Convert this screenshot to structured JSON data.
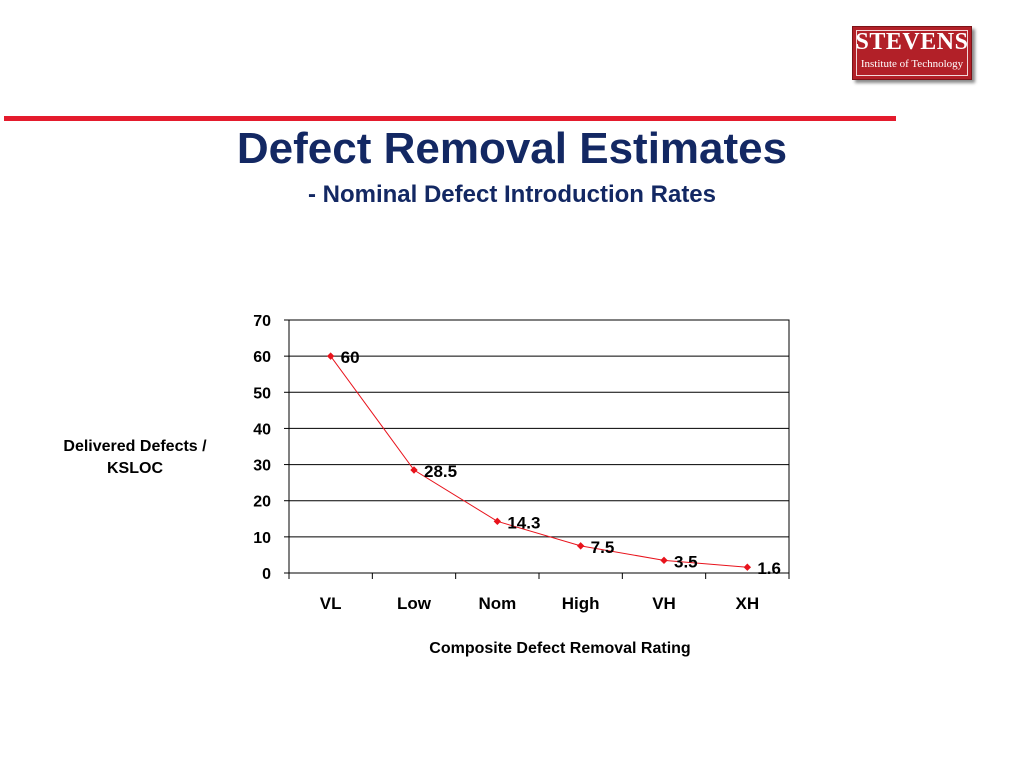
{
  "logo": {
    "name": "STEVENS",
    "subtitle": "Institute of Technology"
  },
  "slide": {
    "title": "Defect Removal Estimates",
    "subtitle": "- Nominal Defect Introduction Rates"
  },
  "colors": {
    "title": "#132863",
    "rule": "#e41b2d",
    "series": "#e8131c",
    "logo": "#b22028"
  },
  "chart_data": {
    "type": "line",
    "title": "",
    "xlabel": "Composite Defect Removal Rating",
    "ylabel": "Delivered Defects / KSLOC",
    "categories": [
      "VL",
      "Low",
      "Nom",
      "High",
      "VH",
      "XH"
    ],
    "values": [
      60,
      28.5,
      14.3,
      7.5,
      3.5,
      1.6
    ],
    "data_labels": [
      "60",
      "28.5",
      "14.3",
      "7.5",
      "3.5",
      "1.6"
    ],
    "ylim": [
      0,
      70
    ],
    "yticks": [
      "0",
      "10",
      "20",
      "30",
      "40",
      "50",
      "60",
      "70"
    ],
    "grid": true,
    "legend": "none",
    "marker": "diamond"
  }
}
